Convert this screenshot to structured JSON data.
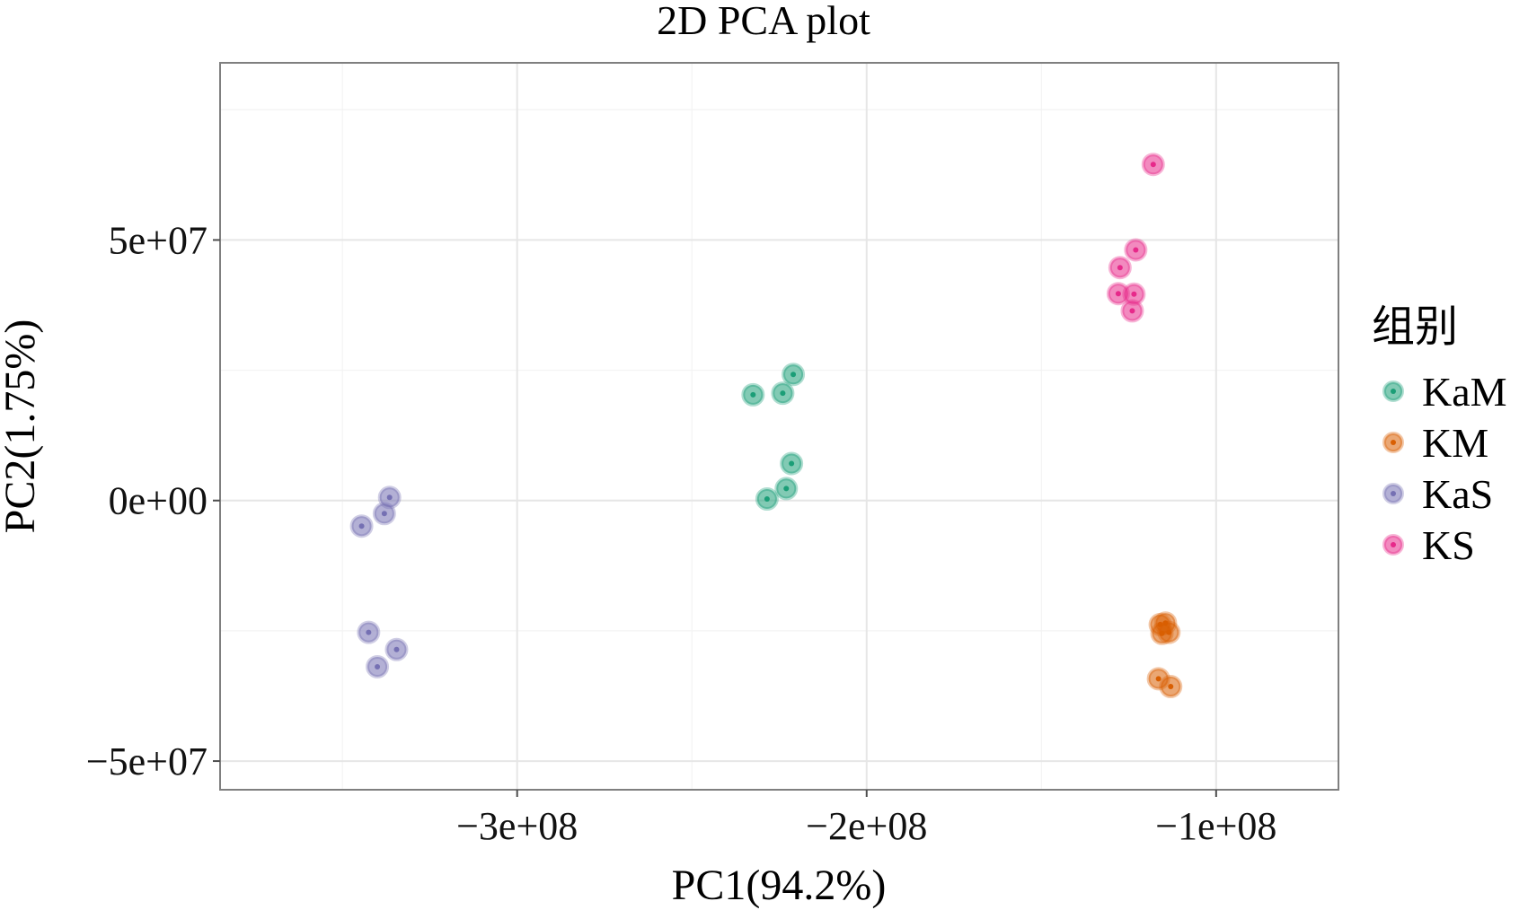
{
  "chart_data": {
    "type": "scatter",
    "title": "2D PCA plot",
    "xlabel": "PC1(94.2%)",
    "ylabel": "PC2(1.75%)",
    "xlim": [
      -385000000.0,
      -65000000.0
    ],
    "ylim": [
      -55500000.0,
      84000000.0
    ],
    "x_ticks": [
      {
        "value": -300000000.0,
        "label": "−3e+08"
      },
      {
        "value": -200000000.0,
        "label": "−2e+08"
      },
      {
        "value": -100000000.0,
        "label": "−1e+08"
      }
    ],
    "y_ticks": [
      {
        "value": 50000000.0,
        "label": "5e+07"
      },
      {
        "value": 0,
        "label": "0e+00"
      },
      {
        "value": -50000000.0,
        "label": "−5e+07"
      }
    ],
    "grid": true,
    "legend": {
      "title": "组别",
      "position": "right",
      "entries": [
        "KaM",
        "KM",
        "KaS",
        "KS"
      ]
    },
    "series": [
      {
        "name": "KaM",
        "color": "#1b9e77",
        "points": [
          {
            "x": -232500000.0,
            "y": 20300000.0
          },
          {
            "x": -224000000.0,
            "y": 20600000.0
          },
          {
            "x": -221000000.0,
            "y": 24200000.0
          },
          {
            "x": -221500000.0,
            "y": 7100000.0
          },
          {
            "x": -223000000.0,
            "y": 2300000.0
          },
          {
            "x": -228500000.0,
            "y": 300000.0
          }
        ]
      },
      {
        "name": "KM",
        "color": "#d95f02",
        "points": [
          {
            "x": -114500000.0,
            "y": -23500000.0
          },
          {
            "x": -116000000.0,
            "y": -23800000.0
          },
          {
            "x": -115500000.0,
            "y": -25500000.0
          },
          {
            "x": -113500000.0,
            "y": -25300000.0
          },
          {
            "x": -116500000.0,
            "y": -34200000.0
          },
          {
            "x": -113000000.0,
            "y": -35700000.0
          }
        ]
      },
      {
        "name": "KaS",
        "color": "#7570b3",
        "points": [
          {
            "x": -336500000.0,
            "y": 600000.0
          },
          {
            "x": -338000000.0,
            "y": -2500000.0
          },
          {
            "x": -344500000.0,
            "y": -4900000.0
          },
          {
            "x": -342500000.0,
            "y": -25300000.0
          },
          {
            "x": -334500000.0,
            "y": -28600000.0
          },
          {
            "x": -340000000.0,
            "y": -31900000.0
          }
        ]
      },
      {
        "name": "KS",
        "color": "#e7298a",
        "points": [
          {
            "x": -118000000.0,
            "y": 64500000.0
          },
          {
            "x": -123000000.0,
            "y": 48100000.0
          },
          {
            "x": -127500000.0,
            "y": 44700000.0
          },
          {
            "x": -128000000.0,
            "y": 39700000.0
          },
          {
            "x": -123500000.0,
            "y": 39600000.0
          },
          {
            "x": -124000000.0,
            "y": 36400000.0
          }
        ]
      }
    ]
  }
}
